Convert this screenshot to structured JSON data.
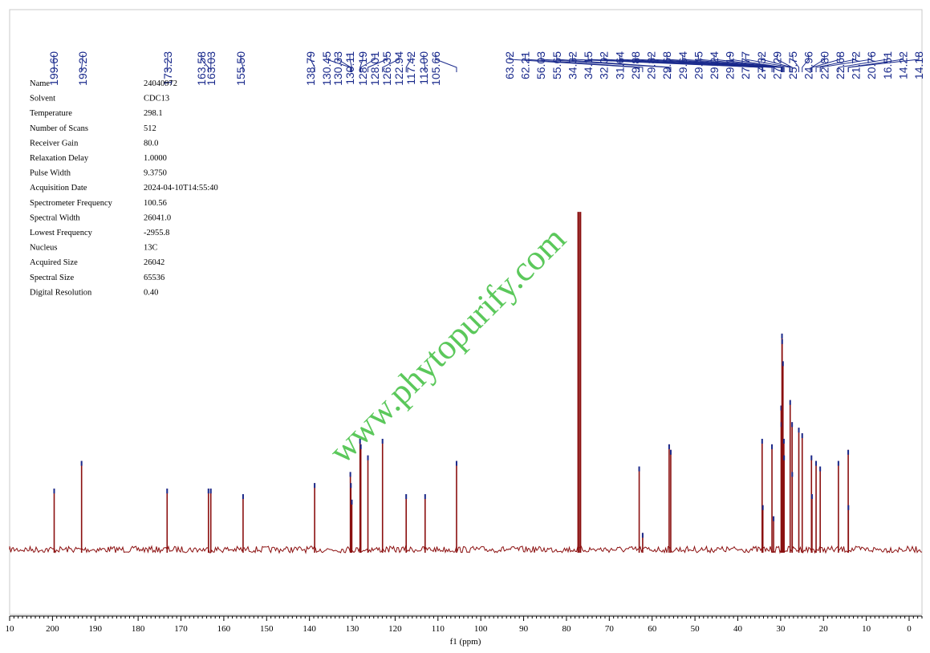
{
  "chart_data": {
    "type": "line",
    "xlabel": "f1 (ppm)",
    "xlim": [
      210,
      -3
    ],
    "x_ticks": [
      "10",
      "200",
      "190",
      "180",
      "170",
      "160",
      "150",
      "140",
      "130",
      "120",
      "110",
      "100",
      "90",
      "80",
      "70",
      "60",
      "50",
      "40",
      "30",
      "20",
      "10",
      "0"
    ],
    "peak_labels": [
      "199.60",
      "193.20",
      "173.23",
      "163.58",
      "163.03",
      "155.50",
      "138.79",
      "130.45",
      "130.33",
      "130.11",
      "128.19",
      "128.01",
      "126.35",
      "122.94",
      "117.42",
      "113.00",
      "105.66",
      "63.02",
      "62.21",
      "56.03",
      "55.65",
      "34.32",
      "34.15",
      "32.02",
      "31.64",
      "29.88",
      "29.82",
      "29.68",
      "29.64",
      "29.45",
      "29.24",
      "29.19",
      "27.77",
      "27.32",
      "27.29",
      "25.75",
      "24.96",
      "22.80",
      "22.68",
      "21.72",
      "20.76",
      "16.51",
      "14.22",
      "14.18"
    ],
    "series": [
      {
        "x": [
          199.6,
          193.2,
          173.23,
          163.58,
          163.03,
          155.5,
          138.79,
          130.45,
          130.33,
          130.11,
          128.19,
          128.01,
          126.35,
          122.94,
          117.42,
          113.0,
          105.66,
          77.3,
          77.0,
          76.7,
          63.02,
          62.21,
          56.03,
          55.65,
          34.32,
          34.15,
          32.02,
          31.64,
          29.88,
          29.82,
          29.68,
          29.64,
          29.45,
          29.24,
          29.19,
          27.77,
          27.32,
          27.29,
          25.75,
          24.96,
          22.8,
          22.68,
          21.72,
          20.76,
          16.51,
          14.22,
          14.18
        ],
        "y": [
          0.11,
          0.16,
          0.11,
          0.11,
          0.11,
          0.1,
          0.12,
          0.14,
          0.12,
          0.09,
          0.2,
          0.19,
          0.17,
          0.2,
          0.1,
          0.1,
          0.16,
          0.61,
          0.61,
          0.61,
          0.15,
          0.03,
          0.19,
          0.18,
          0.2,
          0.08,
          0.19,
          0.06,
          0.26,
          0.23,
          0.39,
          0.38,
          0.34,
          0.2,
          0.17,
          0.27,
          0.23,
          0.14,
          0.22,
          0.21,
          0.17,
          0.1,
          0.16,
          0.15,
          0.16,
          0.18,
          0.08
        ]
      }
    ],
    "colors": {
      "spectrum": "#8b1010",
      "peak_marker": "#1a2a8c",
      "label": "#1a2a8c",
      "watermark": "#3fbf3f"
    }
  },
  "params": [
    [
      "Name",
      "24040972"
    ],
    [
      "Solvent",
      "CDC13"
    ],
    [
      "Temperature",
      "298.1"
    ],
    [
      "Number of Scans",
      "512"
    ],
    [
      "Receiver Gain",
      "80.0"
    ],
    [
      "Relaxation Delay",
      "1.0000"
    ],
    [
      "Pulse Width",
      "9.3750"
    ],
    [
      "Acquisition Date",
      "2024-04-10T14:55:40"
    ],
    [
      "Spectrometer Frequency",
      "100.56"
    ],
    [
      "Spectral Width",
      "26041.0"
    ],
    [
      "Lowest Frequency",
      "-2955.8"
    ],
    [
      "Nucleus",
      "13C"
    ],
    [
      "Acquired Size",
      "26042"
    ],
    [
      "Spectral Size",
      "65536"
    ],
    [
      "Digital Resolution",
      "0.40"
    ]
  ],
  "watermark": "www.phytopurify.com"
}
